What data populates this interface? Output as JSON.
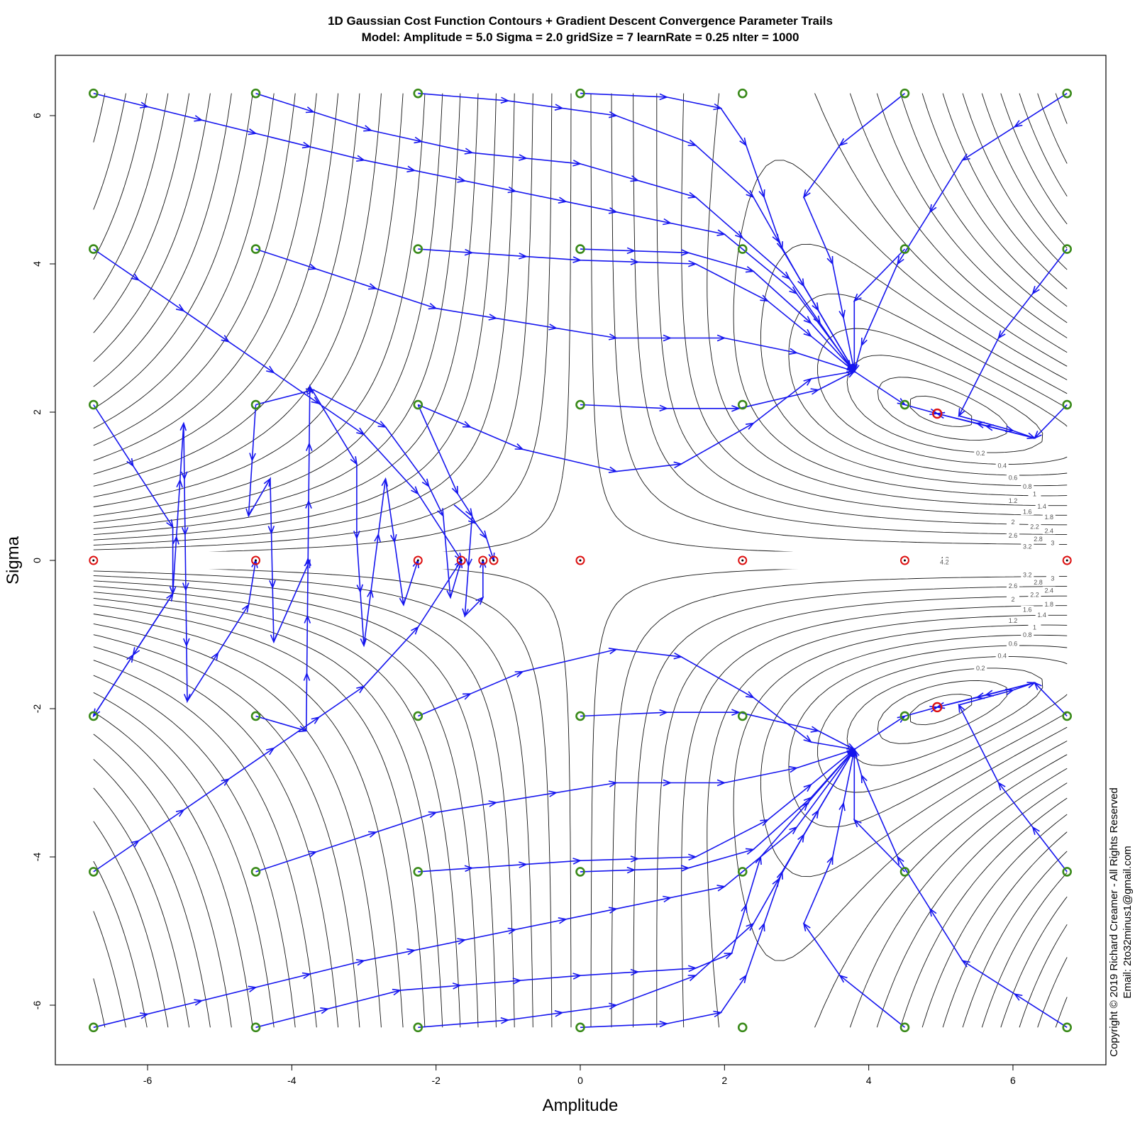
{
  "chart_data": {
    "type": "contour",
    "title_line1": "1D Gaussian Cost Function Contours + Gradient Descent Convergence Parameter Trails",
    "title_line2": "Model: Amplitude = 5.0  Sigma = 2.0  gridSize = 7  learnRate = 0.25 nIter = 1000",
    "xlabel": "Amplitude",
    "ylabel": "Sigma",
    "xlim": [
      -7.3,
      7.3
    ],
    "ylim": [
      -6.85,
      6.85
    ],
    "x_ticks": [
      -6,
      -4,
      -2,
      0,
      2,
      4,
      6
    ],
    "y_ticks": [
      -6,
      -4,
      -2,
      0,
      2,
      4,
      6
    ],
    "x_tick_labels": [
      "-6",
      "-4",
      "-2",
      "0",
      "2",
      "4",
      "6"
    ],
    "y_tick_labels": [
      "-6",
      "-4",
      "-2",
      "0",
      "2",
      "4",
      "6"
    ],
    "contour_level_labels": [
      "0.2",
      "0.4",
      "0.6",
      "0.8",
      "1",
      "1.2",
      "1.4",
      "1.6",
      "1.8",
      "2",
      "2.2",
      "2.4",
      "2.6",
      "2.8",
      "3",
      "3.2",
      "4.2"
    ],
    "grid_amplitude": [
      -6.75,
      -4.5,
      -2.25,
      0,
      2.25,
      4.5,
      6.75
    ],
    "grid_sigma": [
      -6.3,
      -4.2,
      -2.1,
      2.1,
      4.2,
      6.3
    ],
    "start_color": "#3a8a1a",
    "end_color": "#dd1111",
    "trail_color": "#1515ee",
    "contour_color": "#111111",
    "minima": [
      [
        4.95,
        1.98
      ],
      [
        4.95,
        -1.98
      ]
    ],
    "zero_sigma_endpoints": [
      -6.75,
      -4.5,
      -2.25,
      -1.65,
      -1.35,
      -1.2,
      0,
      2.25,
      4.5,
      6.75
    ],
    "trails": [
      [
        [
          -4.5,
          6.3
        ],
        [
          -2.9,
          5.8
        ],
        [
          -1.5,
          5.5
        ],
        [
          0.0,
          5.35
        ],
        [
          1.6,
          4.9
        ],
        [
          2.9,
          3.8
        ],
        [
          3.75,
          2.6
        ]
      ],
      [
        [
          -2.25,
          6.3
        ],
        [
          -1.0,
          6.2
        ],
        [
          0.5,
          6.0
        ],
        [
          1.6,
          5.6
        ],
        [
          2.4,
          4.9
        ],
        [
          3.1,
          3.7
        ],
        [
          3.8,
          2.55
        ]
      ],
      [
        [
          0.0,
          6.3
        ],
        [
          1.2,
          6.25
        ],
        [
          1.95,
          6.1
        ],
        [
          2.3,
          5.6
        ],
        [
          2.8,
          4.2
        ],
        [
          3.8,
          2.55
        ]
      ],
      [
        [
          -6.75,
          6.3
        ],
        [
          -3.0,
          5.4
        ],
        [
          0.5,
          4.7
        ],
        [
          2.0,
          4.4
        ],
        [
          3.0,
          3.6
        ],
        [
          3.8,
          2.55
        ]
      ],
      [
        [
          -2.25,
          4.2
        ],
        [
          0.0,
          4.05
        ],
        [
          1.6,
          4.0
        ],
        [
          2.6,
          3.5
        ],
        [
          3.8,
          2.55
        ]
      ],
      [
        [
          0.0,
          4.2
        ],
        [
          1.5,
          4.15
        ],
        [
          2.4,
          3.9
        ],
        [
          3.2,
          3.2
        ],
        [
          3.8,
          2.55
        ]
      ],
      [
        [
          -4.5,
          4.2
        ],
        [
          -2.0,
          3.4
        ],
        [
          0.5,
          3.0
        ],
        [
          2.0,
          3.0
        ],
        [
          3.0,
          2.8
        ],
        [
          3.8,
          2.55
        ]
      ],
      [
        [
          0.0,
          2.1
        ],
        [
          1.2,
          2.05
        ],
        [
          2.2,
          2.05
        ],
        [
          3.3,
          2.3
        ],
        [
          3.8,
          2.55
        ]
      ],
      [
        [
          -2.25,
          2.1
        ],
        [
          -0.8,
          1.5
        ],
        [
          0.5,
          1.2
        ],
        [
          1.4,
          1.3
        ],
        [
          2.4,
          1.85
        ],
        [
          3.2,
          2.45
        ],
        [
          3.8,
          2.55
        ]
      ],
      [
        [
          4.5,
          6.3
        ],
        [
          3.6,
          5.6
        ],
        [
          3.1,
          4.9
        ],
        [
          3.5,
          4.0
        ],
        [
          3.8,
          2.55
        ]
      ],
      [
        [
          4.5,
          4.2
        ],
        [
          3.8,
          3.5
        ],
        [
          3.8,
          2.55
        ]
      ],
      [
        [
          6.75,
          6.3
        ],
        [
          5.3,
          5.4
        ],
        [
          4.4,
          4.0
        ],
        [
          3.9,
          2.9
        ],
        [
          3.8,
          2.55
        ]
      ],
      [
        [
          3.8,
          2.55
        ],
        [
          4.5,
          2.1
        ],
        [
          4.95,
          1.98
        ]
      ],
      [
        [
          6.75,
          4.2
        ],
        [
          5.8,
          3.0
        ],
        [
          5.25,
          1.95
        ],
        [
          6.0,
          1.75
        ],
        [
          6.3,
          1.65
        ],
        [
          4.95,
          1.98
        ]
      ],
      [
        [
          6.75,
          2.1
        ],
        [
          6.3,
          1.65
        ],
        [
          5.5,
          1.85
        ],
        [
          4.95,
          1.98
        ]
      ],
      [
        [
          -4.5,
          -6.3
        ],
        [
          -2.5,
          -5.8
        ],
        [
          0.0,
          -5.6
        ],
        [
          1.6,
          -5.5
        ],
        [
          2.1,
          -5.3
        ],
        [
          2.5,
          -4.0
        ],
        [
          3.8,
          -2.55
        ]
      ],
      [
        [
          -2.25,
          -6.3
        ],
        [
          -1.0,
          -6.2
        ],
        [
          0.5,
          -6.0
        ],
        [
          1.6,
          -5.6
        ],
        [
          2.4,
          -4.9
        ],
        [
          3.1,
          -3.7
        ],
        [
          3.8,
          -2.55
        ]
      ],
      [
        [
          0.0,
          -6.3
        ],
        [
          1.2,
          -6.25
        ],
        [
          1.95,
          -6.1
        ],
        [
          2.3,
          -5.6
        ],
        [
          2.8,
          -4.2
        ],
        [
          3.8,
          -2.55
        ]
      ],
      [
        [
          -6.75,
          -6.3
        ],
        [
          -3.0,
          -5.4
        ],
        [
          0.5,
          -4.7
        ],
        [
          2.0,
          -4.4
        ],
        [
          3.0,
          -3.6
        ],
        [
          3.8,
          -2.55
        ]
      ],
      [
        [
          -2.25,
          -4.2
        ],
        [
          0.0,
          -4.05
        ],
        [
          1.6,
          -4.0
        ],
        [
          2.6,
          -3.5
        ],
        [
          3.8,
          -2.55
        ]
      ],
      [
        [
          0.0,
          -4.2
        ],
        [
          1.5,
          -4.15
        ],
        [
          2.4,
          -3.9
        ],
        [
          3.2,
          -3.2
        ],
        [
          3.8,
          -2.55
        ]
      ],
      [
        [
          -4.5,
          -4.2
        ],
        [
          -2.0,
          -3.4
        ],
        [
          0.5,
          -3.0
        ],
        [
          2.0,
          -3.0
        ],
        [
          3.0,
          -2.8
        ],
        [
          3.8,
          -2.55
        ]
      ],
      [
        [
          0.0,
          -2.1
        ],
        [
          1.2,
          -2.05
        ],
        [
          2.2,
          -2.05
        ],
        [
          3.3,
          -2.3
        ],
        [
          3.8,
          -2.55
        ]
      ],
      [
        [
          -2.25,
          -2.1
        ],
        [
          -0.8,
          -1.5
        ],
        [
          0.5,
          -1.2
        ],
        [
          1.4,
          -1.3
        ],
        [
          2.4,
          -1.85
        ],
        [
          3.2,
          -2.45
        ],
        [
          3.8,
          -2.55
        ]
      ],
      [
        [
          4.5,
          -6.3
        ],
        [
          3.6,
          -5.6
        ],
        [
          3.1,
          -4.9
        ],
        [
          3.5,
          -4.0
        ],
        [
          3.8,
          -2.55
        ]
      ],
      [
        [
          4.5,
          -4.2
        ],
        [
          3.8,
          -3.5
        ],
        [
          3.8,
          -2.55
        ]
      ],
      [
        [
          6.75,
          -6.3
        ],
        [
          5.3,
          -5.4
        ],
        [
          4.4,
          -4.0
        ],
        [
          3.9,
          -2.9
        ],
        [
          3.8,
          -2.55
        ]
      ],
      [
        [
          3.8,
          -2.55
        ],
        [
          4.5,
          -2.1
        ],
        [
          4.95,
          -1.98
        ]
      ],
      [
        [
          6.75,
          -4.2
        ],
        [
          5.8,
          -3.0
        ],
        [
          5.25,
          -1.95
        ],
        [
          6.0,
          -1.75
        ],
        [
          6.3,
          -1.65
        ],
        [
          4.95,
          -1.98
        ]
      ],
      [
        [
          6.75,
          -2.1
        ],
        [
          6.3,
          -1.65
        ],
        [
          5.5,
          -1.85
        ],
        [
          4.95,
          -1.98
        ]
      ],
      [
        [
          -6.75,
          4.2
        ],
        [
          -3.0,
          1.7
        ],
        [
          -2.25,
          0.9
        ],
        [
          -1.65,
          0.0
        ]
      ],
      [
        [
          -6.75,
          2.1
        ],
        [
          -5.65,
          0.45
        ],
        [
          -5.65,
          -0.45
        ],
        [
          -6.75,
          -2.1
        ]
      ],
      [
        [
          -6.75,
          -2.1
        ],
        [
          -5.65,
          -0.45
        ],
        [
          -5.5,
          1.85
        ],
        [
          -5.45,
          -1.9
        ],
        [
          -4.6,
          -0.6
        ],
        [
          -4.5,
          0.0
        ]
      ],
      [
        [
          -4.5,
          2.1
        ],
        [
          -4.6,
          0.6
        ],
        [
          -4.3,
          1.1
        ],
        [
          -4.25,
          -1.1
        ],
        [
          -3.75,
          0.0
        ]
      ],
      [
        [
          -4.5,
          -2.1
        ],
        [
          -3.8,
          -2.3
        ],
        [
          -3.75,
          2.35
        ],
        [
          -3.1,
          1.3
        ],
        [
          -3.1,
          0.3
        ],
        [
          -3.0,
          -1.15
        ],
        [
          -2.7,
          1.1
        ],
        [
          -2.45,
          -0.6
        ],
        [
          -2.25,
          0.0
        ]
      ],
      [
        [
          -4.5,
          2.1
        ],
        [
          -3.7,
          2.3
        ],
        [
          -2.7,
          1.8
        ],
        [
          -2.1,
          1.0
        ],
        [
          -1.9,
          0.6
        ],
        [
          -1.8,
          -0.5
        ],
        [
          -1.65,
          0.0
        ]
      ],
      [
        [
          -6.75,
          -4.2
        ],
        [
          -3.0,
          -1.7
        ],
        [
          -2.25,
          -0.9
        ],
        [
          -1.65,
          0.0
        ]
      ],
      [
        [
          -2.25,
          2.1
        ],
        [
          -1.7,
          0.9
        ],
        [
          -1.5,
          0.6
        ],
        [
          -1.6,
          -0.75
        ],
        [
          -1.35,
          -0.5
        ],
        [
          -1.35,
          0.0
        ]
      ],
      [
        [
          -1.75,
          0.75
        ],
        [
          -1.45,
          0.5
        ],
        [
          -1.3,
          0.3
        ],
        [
          -1.2,
          0.0
        ]
      ]
    ]
  }
}
